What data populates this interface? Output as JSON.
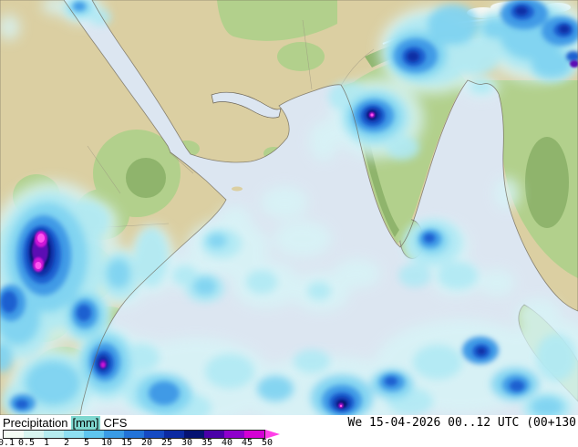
{
  "footer": {
    "product": "Precipitation",
    "unit": "[mm]",
    "model": "CFS",
    "datetime": "We 15-04-2026 00..12 UTC (00+130",
    "unit_highlight": "#7fd8d0",
    "legend_labels": [
      "0.1",
      "0.5",
      "1",
      "2",
      "5",
      "10",
      "15",
      "20",
      "25",
      "30",
      "35",
      "40",
      "45",
      "50"
    ],
    "legend_colors": [
      "#f4fbf4",
      "#d8f4ef",
      "#b5ecef",
      "#8edff2",
      "#5fc5ef",
      "#3a9ce6",
      "#2273d8",
      "#154ac3",
      "#0b2aa2",
      "#051272",
      "#4a00a8",
      "#8e00cc",
      "#d400d4"
    ],
    "legend_arrow_color": "#ff40e8"
  },
  "map": {
    "region": "Indian Ocean / South Asia / East Africa",
    "ocean_color": "#dce6f1",
    "land_color": "#dbcfa2",
    "vegetation_color": "#b2d08c",
    "highland_color": "#8fb46c",
    "coast_color": "#6b6456",
    "precip_colors": {
      "p01": "#d7f4f7",
      "p05": "#aee9f4",
      "p1": "#7dd2f1",
      "p2": "#3f9ae6",
      "p5": "#1f61d0",
      "p10": "#0a2da4",
      "p20": "#041668",
      "p30": "#5c0ab4",
      "p40": "#cf16d8",
      "p50": "#ff54f0"
    }
  }
}
